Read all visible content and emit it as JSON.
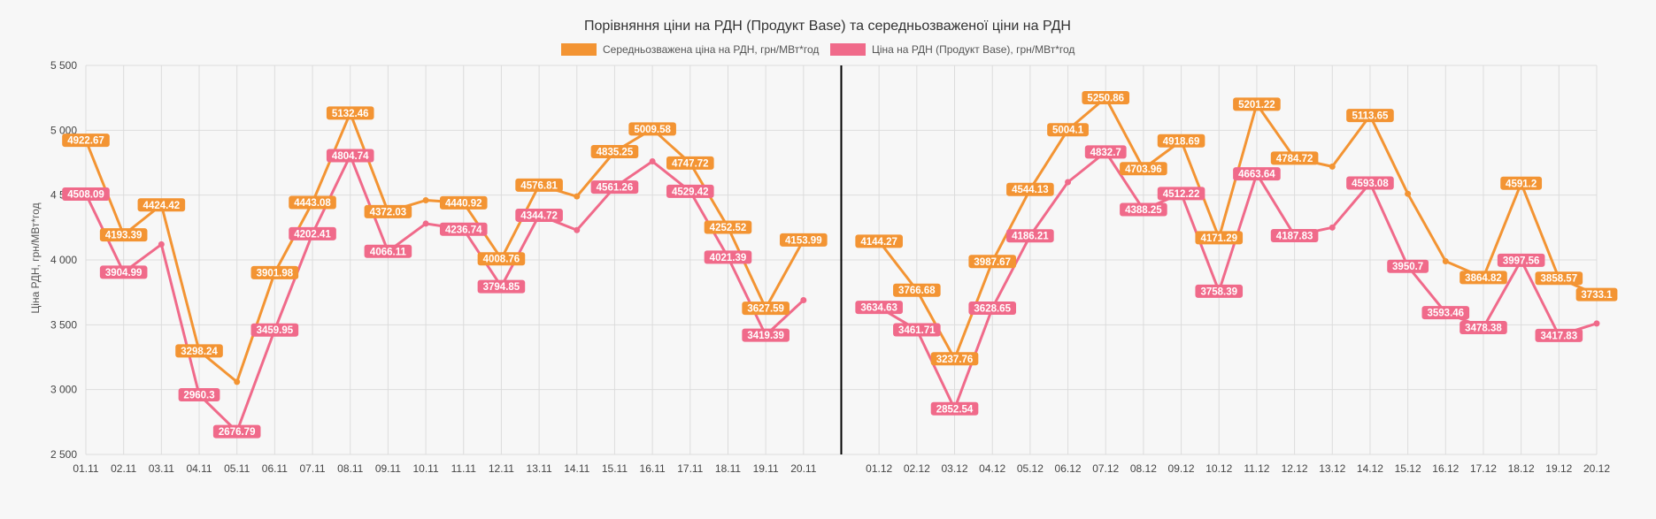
{
  "chart_data": {
    "type": "line",
    "title": "Порівняння ціни на РДН (Продукт Base) та середньозваженої ціни на РДН",
    "ylabel": "Ціна РДН, грн/МВт*год",
    "xlabel": "",
    "ylim": [
      2500,
      5500
    ],
    "yticks": [
      2500,
      3000,
      3500,
      4000,
      4500,
      5000,
      5500
    ],
    "ytick_labels": [
      "2 500",
      "3 000",
      "3 500",
      "4 000",
      "4 500",
      "5 000",
      "5 500"
    ],
    "grid": true,
    "legend_position": "top",
    "divider_after_category": "20.11",
    "categories": [
      "01.11",
      "02.11",
      "03.11",
      "04.11",
      "05.11",
      "06.11",
      "07.11",
      "08.11",
      "09.11",
      "10.11",
      "11.11",
      "12.11",
      "13.11",
      "14.11",
      "15.11",
      "16.11",
      "17.11",
      "18.11",
      "19.11",
      "20.11",
      "",
      "01.12",
      "02.12",
      "03.12",
      "04.12",
      "05.12",
      "06.12",
      "07.12",
      "08.12",
      "09.12",
      "10.12",
      "11.12",
      "12.12",
      "13.12",
      "14.12",
      "15.12",
      "16.12",
      "17.12",
      "18.12",
      "19.12",
      "20.12"
    ],
    "series": [
      {
        "name": "Середньозважена ціна на РДН, грн/МВт*год",
        "color": "#f39433",
        "values": [
          4922.67,
          4193.39,
          4424.42,
          3298.24,
          3060,
          3901.98,
          4443.08,
          5132.46,
          4372.03,
          4460,
          4440.92,
          4008.76,
          4576.81,
          4490,
          4835.25,
          5009.58,
          4747.72,
          4252.52,
          3627.59,
          4153.99,
          null,
          4144.27,
          3766.68,
          3237.76,
          3987.67,
          4544.13,
          5004.1,
          5250.86,
          4703.96,
          4918.69,
          4171.29,
          5201.22,
          4784.72,
          4720,
          5113.65,
          4510,
          3990,
          3864.82,
          4591.2,
          3858.57,
          3733.1
        ],
        "labels": [
          "4922.67",
          "4193.39",
          "4424.42",
          "3298.24",
          "",
          "3901.98",
          "4443.08",
          "5132.46",
          "4372.03",
          "",
          "4440.92",
          "4008.76",
          "4576.81",
          "",
          "4835.25",
          "5009.58",
          "4747.72",
          "4252.52",
          "3627.59",
          "4153.99",
          "",
          "4144.27",
          "3766.68",
          "3237.76",
          "3987.67",
          "4544.13",
          "5004.1",
          "5250.86",
          "4703.96",
          "4918.69",
          "4171.29",
          "5201.22",
          "4784.72",
          "",
          "5113.65",
          "",
          "",
          "3864.82",
          "4591.2",
          "3858.57",
          "3733.1"
        ]
      },
      {
        "name": "Ціна на РДН (Продукт Base), грн/МВт*год",
        "color": "#f06a8a",
        "values": [
          4508.09,
          3904.99,
          4120,
          2960.3,
          2676.79,
          3459.95,
          4202.41,
          4804.74,
          4066.11,
          4280,
          4236.74,
          3794.85,
          4344.72,
          4230,
          4561.26,
          4760,
          4529.42,
          4021.39,
          3419.39,
          3690,
          null,
          3634.63,
          3461.71,
          2852.54,
          3628.65,
          4186.21,
          4600,
          4832.7,
          4388.25,
          4512.22,
          3758.39,
          4663.64,
          4187.83,
          4250,
          4593.08,
          3950.7,
          3593.46,
          3478.38,
          3997.56,
          3417.83,
          3510
        ],
        "labels": [
          "4508.09",
          "3904.99",
          "",
          "2960.3",
          "2676.79",
          "3459.95",
          "4202.41",
          "4804.74",
          "4066.11",
          "",
          "4236.74",
          "3794.85",
          "4344.72",
          "",
          "4561.26",
          "",
          "4529.42",
          "4021.39",
          "3419.39",
          "",
          "",
          "3634.63",
          "3461.71",
          "2852.54",
          "3628.65",
          "4186.21",
          "",
          "4832.7",
          "4388.25",
          "4512.22",
          "3758.39",
          "4663.64",
          "4187.83",
          "",
          "4593.08",
          "3950.7",
          "3593.46",
          "3478.38",
          "3997.56",
          "3417.83",
          ""
        ]
      }
    ]
  }
}
